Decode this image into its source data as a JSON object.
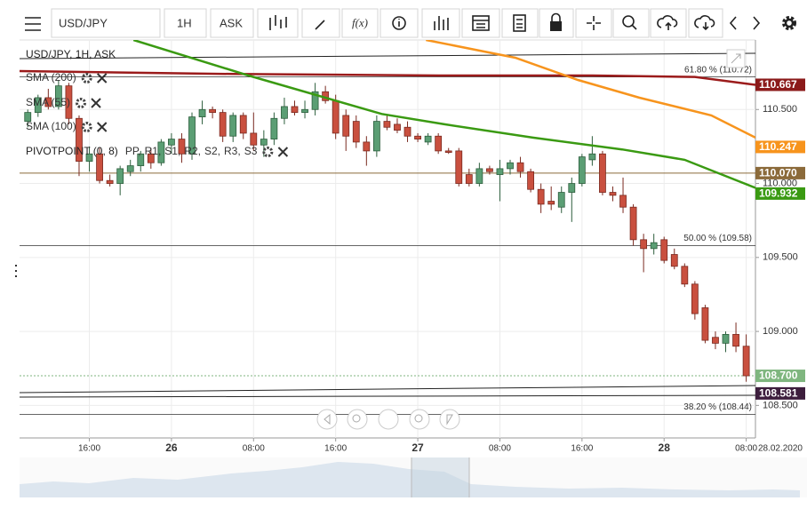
{
  "toolbar": {
    "symbol": "USD/JPY",
    "interval": "1H",
    "price_type": "ASK",
    "function": "f(x)"
  },
  "chart_data": {
    "type": "candlestick",
    "legend_title": "USD/JPY, 1H, ASK",
    "xlim": [
      9.2,
      80.9
    ],
    "xticks": [
      {
        "value": 16,
        "label": "16:00"
      },
      {
        "value": 24,
        "label": "26"
      },
      {
        "value": 32,
        "label": "08:00"
      },
      {
        "value": 40,
        "label": "16:00"
      },
      {
        "value": 48,
        "label": "27"
      },
      {
        "value": 56,
        "label": "08:00"
      },
      {
        "value": 64,
        "label": "16:00"
      },
      {
        "value": 72,
        "label": "28"
      },
      {
        "value": 80,
        "label": "08:00"
      }
    ],
    "date_label": "28.02.2020",
    "ylim": [
      108.28,
      110.97
    ],
    "yticks": [
      {
        "value": 108.5,
        "label": "108.500"
      },
      {
        "value": 109,
        "label": "109.000"
      },
      {
        "value": 109.5,
        "label": "109.500"
      },
      {
        "value": 110,
        "label": "110.000"
      },
      {
        "value": 110.5,
        "label": "110.500"
      }
    ],
    "grid": true,
    "candles": {
      "up_color": "#5b9e74",
      "down_color": "#c9503f",
      "x": [
        10,
        11,
        12,
        13,
        14,
        15,
        16,
        17,
        18,
        19,
        20,
        21,
        22,
        23,
        24,
        25,
        26,
        27,
        28,
        29,
        30,
        31,
        32,
        33,
        34,
        35,
        36,
        37,
        38,
        39,
        40,
        41,
        42,
        43,
        44,
        45,
        46,
        47,
        48,
        49,
        50,
        51,
        52,
        53,
        54,
        55,
        56,
        57,
        58,
        59,
        60,
        61,
        62,
        63,
        64,
        65,
        66,
        67,
        68,
        69,
        70,
        71,
        72,
        73,
        74,
        75,
        76,
        77,
        78,
        79,
        80
      ],
      "open": [
        110.42,
        110.48,
        110.58,
        110.52,
        110.66,
        110.44,
        110.15,
        110.2,
        110.02,
        110.0,
        110.08,
        110.12,
        110.2,
        110.14,
        110.26,
        110.3,
        110.2,
        110.45,
        110.5,
        110.48,
        110.32,
        110.46,
        110.34,
        110.26,
        110.3,
        110.44,
        110.52,
        110.48,
        110.5,
        110.62,
        110.56,
        110.46,
        110.42,
        110.28,
        110.22,
        110.42,
        110.4,
        110.38,
        110.32,
        110.28,
        110.32,
        110.22,
        110.22,
        110.06,
        110.0,
        110.1,
        110.06,
        110.1,
        110.14,
        110.08,
        109.96,
        109.88,
        109.84,
        109.94,
        110.0,
        110.16,
        110.2,
        109.94,
        109.92,
        109.84,
        109.62,
        109.56,
        109.62,
        109.52,
        109.44,
        109.32,
        109.16,
        108.96,
        108.92,
        108.98,
        108.9
      ],
      "high": [
        110.5,
        110.6,
        110.64,
        110.7,
        110.68,
        110.46,
        110.25,
        110.24,
        110.06,
        110.12,
        110.16,
        110.22,
        110.24,
        110.3,
        110.34,
        110.34,
        110.48,
        110.56,
        110.52,
        110.5,
        110.48,
        110.48,
        110.48,
        110.36,
        110.48,
        110.58,
        110.56,
        110.56,
        110.68,
        110.66,
        110.6,
        110.5,
        110.46,
        110.32,
        110.46,
        110.46,
        110.44,
        110.42,
        110.34,
        110.34,
        110.34,
        110.24,
        110.24,
        110.1,
        110.14,
        110.12,
        110.16,
        110.16,
        110.18,
        110.1,
        110.0,
        109.98,
        109.98,
        110.04,
        110.2,
        110.32,
        110.22,
        109.98,
        110.04,
        109.86,
        109.66,
        109.66,
        109.64,
        109.56,
        109.46,
        109.34,
        109.18,
        109.0,
        109.0,
        109.06,
        108.98
      ],
      "low": [
        110.38,
        110.45,
        110.5,
        110.5,
        110.4,
        110.05,
        110.08,
        110.0,
        109.98,
        109.92,
        110.05,
        110.08,
        110.1,
        110.12,
        110.2,
        110.14,
        110.16,
        110.4,
        110.44,
        110.28,
        110.28,
        110.3,
        110.22,
        110.18,
        110.26,
        110.4,
        110.46,
        110.44,
        110.46,
        110.54,
        110.3,
        110.22,
        110.24,
        110.12,
        110.18,
        110.36,
        110.34,
        110.28,
        110.28,
        110.26,
        110.2,
        110.2,
        109.98,
        109.98,
        109.98,
        110.06,
        109.88,
        110.06,
        110.04,
        109.94,
        109.8,
        109.82,
        109.8,
        109.74,
        109.98,
        110.12,
        109.92,
        109.88,
        109.8,
        109.58,
        109.4,
        109.52,
        109.46,
        109.42,
        109.3,
        109.08,
        108.92,
        108.88,
        108.86,
        108.86,
        108.66
      ],
      "close": [
        110.48,
        110.58,
        110.52,
        110.66,
        110.44,
        110.15,
        110.2,
        110.02,
        110.0,
        110.1,
        110.12,
        110.2,
        110.14,
        110.28,
        110.3,
        110.2,
        110.45,
        110.5,
        110.48,
        110.32,
        110.46,
        110.34,
        110.26,
        110.3,
        110.44,
        110.52,
        110.48,
        110.5,
        110.62,
        110.56,
        110.34,
        110.32,
        110.28,
        110.22,
        110.42,
        110.38,
        110.36,
        110.32,
        110.3,
        110.32,
        110.22,
        110.21,
        110.0,
        110.0,
        110.1,
        110.08,
        110.1,
        110.14,
        110.08,
        109.96,
        109.86,
        109.86,
        109.94,
        110.0,
        110.18,
        110.2,
        109.94,
        109.92,
        109.84,
        109.62,
        109.56,
        109.6,
        109.48,
        109.44,
        109.32,
        109.12,
        108.94,
        108.92,
        108.98,
        108.9,
        108.7
      ]
    },
    "series": [
      {
        "name": "SMA (200)",
        "color": "#9b1b1b",
        "x": [
          9.2,
          30,
          50,
          65,
          75,
          80.9
        ],
        "values": [
          110.76,
          110.74,
          110.73,
          110.73,
          110.72,
          110.667
        ]
      },
      {
        "name": "SMA (55)",
        "color": "#3a9a12",
        "x": [
          20.3,
          31.5,
          44.5,
          50.6,
          59.2,
          67.9,
          74.0,
          80.9
        ],
        "values": [
          110.97,
          110.73,
          110.47,
          110.4,
          110.31,
          110.23,
          110.16,
          109.97
        ]
      },
      {
        "name": "SMA (100)",
        "color": "#f7941d",
        "x": [
          48.8,
          57.5,
          63.6,
          69.6,
          76.6,
          80.9
        ],
        "values": [
          110.97,
          110.85,
          110.7,
          110.58,
          110.46,
          110.31
        ]
      }
    ],
    "pivot": {
      "name": "PIVOTPOINT (0, 8)",
      "levels": [
        {
          "label": "PP,",
          "color": "#c0399d"
        },
        {
          "label": "R1,",
          "color": "#2e8b3e"
        },
        {
          "label": "S1,",
          "color": "#7a7a1e"
        },
        {
          "label": "R2,",
          "color": "#2c4fa8"
        },
        {
          "label": "S2,",
          "color": "#6a2c8a"
        },
        {
          "label": "R3,",
          "color": "#a0522d"
        },
        {
          "label": "S3",
          "color": "#d63a8c"
        }
      ]
    },
    "fib_levels": [
      {
        "value": 110.72,
        "label": "61.80 % (110.72)"
      },
      {
        "value": 109.58,
        "label": "50.00 % (109.58)"
      },
      {
        "value": 108.44,
        "label": "38.20 % (108.44)"
      }
    ],
    "price_labels": [
      {
        "value": 110.667,
        "label": "110.667",
        "color": "#8b1a1a",
        "line": "none"
      },
      {
        "value": 110.247,
        "label": "110.247",
        "color": "#f7941d",
        "line": "none"
      },
      {
        "value": 110.07,
        "label": "110.070",
        "color": "#8b6a3a",
        "line": "solid"
      },
      {
        "value": 109.932,
        "label": "109.932",
        "color": "#3a9a12",
        "line": "none"
      },
      {
        "value": 108.7,
        "label": "108.700",
        "color": "#7fb67f",
        "line": "dotted"
      },
      {
        "value": 108.581,
        "label": "108.581",
        "color": "#3d1e3d",
        "line": "none"
      }
    ]
  }
}
